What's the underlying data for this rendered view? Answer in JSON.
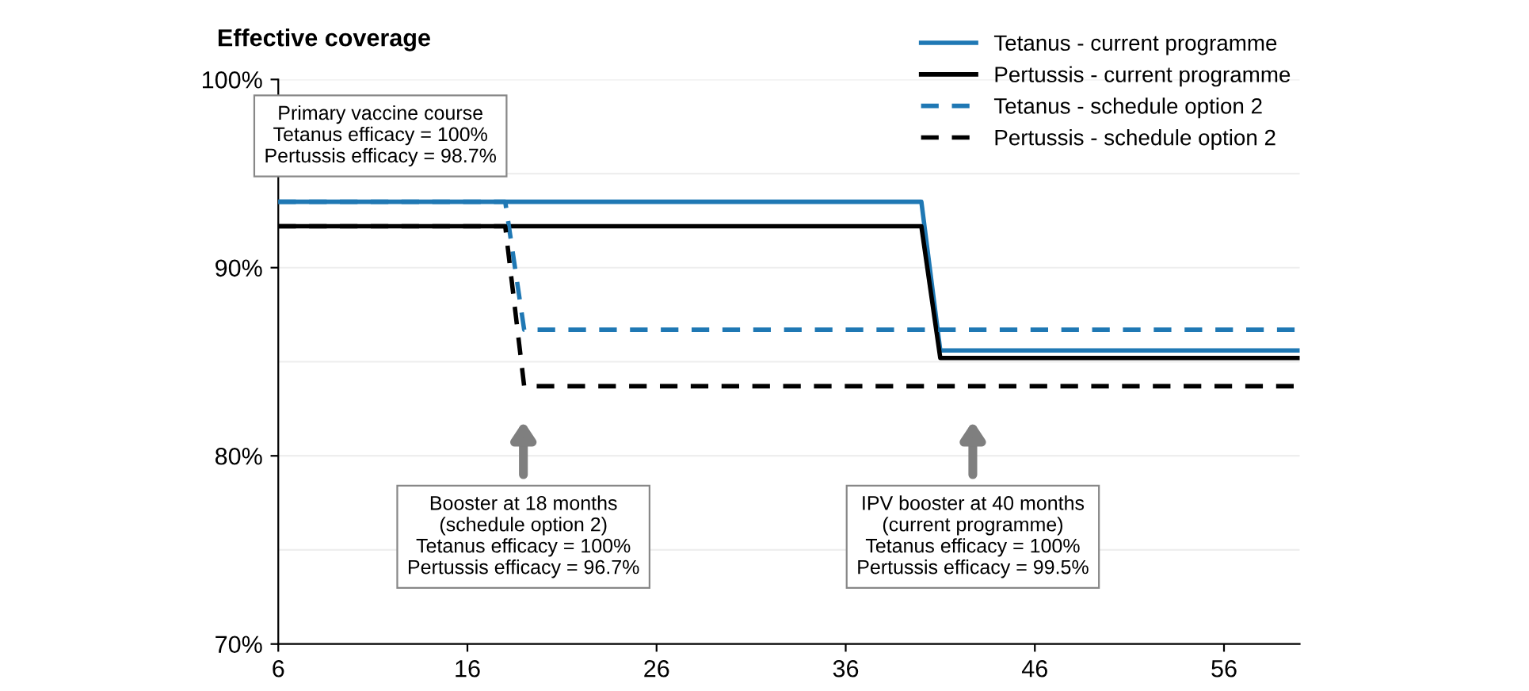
{
  "chart_data": {
    "type": "line",
    "ylabel": "Effective coverage",
    "xlim": [
      6,
      60
    ],
    "xticks": [
      6,
      16,
      26,
      36,
      46,
      56
    ],
    "ylim": [
      70,
      100
    ],
    "yticks": [
      {
        "value": 70,
        "label": "70%"
      },
      {
        "value": 75,
        "label": null
      },
      {
        "value": 80,
        "label": "80%"
      },
      {
        "value": 85,
        "label": null
      },
      {
        "value": 90,
        "label": "90%"
      },
      {
        "value": 95,
        "label": null
      },
      {
        "value": 100,
        "label": "100%"
      }
    ],
    "grid": "y",
    "legend": "top right",
    "series": [
      {
        "name": "Tetanus - current programme",
        "color": "#1f78b4",
        "line_style": "solid",
        "x": [
          6,
          40,
          41,
          60
        ],
        "values": [
          93.5,
          93.5,
          85.6,
          85.6
        ]
      },
      {
        "name": "Pertussis - current programme",
        "color": "#000000",
        "line_style": "solid",
        "x": [
          6,
          40,
          41,
          60
        ],
        "values": [
          92.2,
          92.2,
          85.2,
          85.2
        ]
      },
      {
        "name": "Tetanus - schedule option 2",
        "color": "#1f78b4",
        "line_style": "dashed",
        "x": [
          6,
          18,
          19,
          60
        ],
        "values": [
          93.5,
          93.5,
          86.7,
          86.7
        ]
      },
      {
        "name": "Pertussis - schedule option 2",
        "color": "#000000",
        "line_style": "dashed",
        "x": [
          6,
          18,
          19,
          60
        ],
        "values": [
          92.2,
          92.2,
          83.7,
          83.7
        ]
      }
    ],
    "annotations": [
      "Primary vaccine course\nTetanus efficacy = 100%\nPertussis efficacy = 98.7%",
      "Booster at 18 months\n(schedule option 2)\nTetanus efficacy = 100%\nPertussis efficacy = 96.7%",
      "IPV booster at 40 months\n(current programme)\nTetanus efficacy = 100%\nPertussis efficacy = 99.5%"
    ]
  }
}
